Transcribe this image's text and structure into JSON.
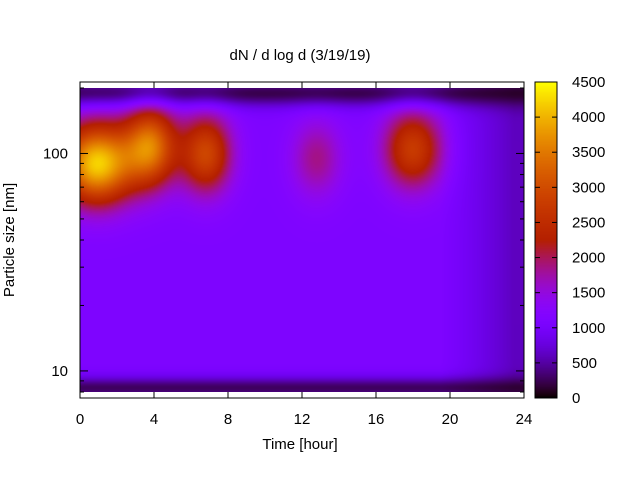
{
  "chart_data": {
    "type": "heatmap",
    "title": "dN / d log d (3/19/19)",
    "xlabel": "Time [hour]",
    "ylabel": "Particle size [nm]",
    "xlim": [
      0,
      24
    ],
    "ylim_nm": [
      8,
      200
    ],
    "y_scale": "log",
    "x_ticks": [
      0,
      4,
      8,
      12,
      16,
      20,
      24
    ],
    "x_tick_labels": [
      "0",
      "4",
      "8",
      "12",
      "16",
      "20",
      "24"
    ],
    "y_ticks": [
      10,
      100
    ],
    "y_tick_labels": [
      "10",
      "100"
    ],
    "colorbar": {
      "min": 0,
      "max": 4500,
      "ticks": [
        0,
        500,
        1000,
        1500,
        2000,
        2500,
        3000,
        3500,
        4000,
        4500
      ],
      "tick_labels": [
        "0",
        "500",
        "1000",
        "1500",
        "2000",
        "2500",
        "3000",
        "3500",
        "4000",
        "4500"
      ],
      "palette": "black-purple-red-orange-yellow"
    },
    "blobs": [
      {
        "time_h": 0.9,
        "size_nm": 90,
        "peak": 4200
      },
      {
        "time_h": 3.8,
        "size_nm": 108,
        "peak": 3400
      },
      {
        "time_h": 6.8,
        "size_nm": 100,
        "peak": 2900
      },
      {
        "time_h": 12.8,
        "size_nm": 95,
        "peak": 1850
      },
      {
        "time_h": 18.0,
        "size_nm": 105,
        "peak": 2750
      }
    ],
    "background_level": 1100
  }
}
